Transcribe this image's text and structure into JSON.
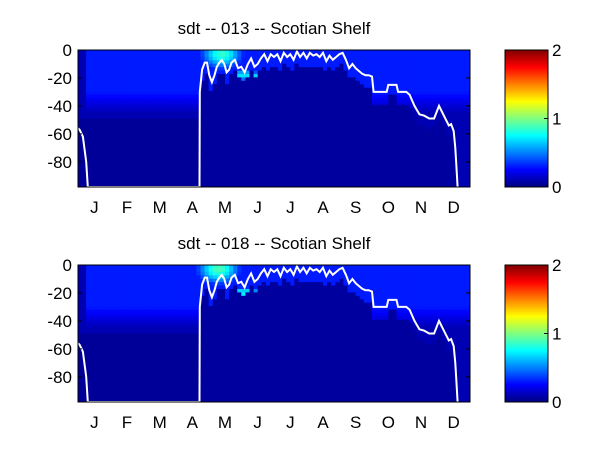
{
  "chart_data": [
    {
      "type": "heatmap",
      "title": "sdt -- 013 -- Scotian Shelf",
      "xlabel": "",
      "ylabel": "",
      "x_categories": [
        "J",
        "F",
        "M",
        "A",
        "M",
        "J",
        "J",
        "A",
        "S",
        "O",
        "N",
        "D"
      ],
      "xlim": [
        0,
        12
      ],
      "ylim": [
        -98,
        0
      ],
      "y_ticks": [
        0,
        -20,
        -40,
        -60,
        -80
      ],
      "y_tick_labels": [
        "0",
        "-20",
        "-40",
        "-60",
        "-80"
      ],
      "colorbar": {
        "colormap": "jet",
        "clim": [
          0,
          2
        ],
        "ticks": [
          0,
          1,
          2
        ],
        "tick_labels": [
          "0",
          "1",
          "2"
        ]
      },
      "field_description": {
        "background_value": 0.1,
        "surface_band": {
          "value": 0.3,
          "depth": [
            0,
            -45
          ],
          "active_months": [
            0.3,
            12
          ]
        },
        "hotspot": {
          "value": 0.85,
          "month": 4.4,
          "depth": -3
        },
        "subsurface_streak": {
          "value": 0.7,
          "from": [
            5.3,
            -18
          ],
          "to": [
            7.0,
            -30
          ]
        }
      },
      "mixed_layer_depth": {
        "color": "#ffffff",
        "months": [
          0.0,
          0.05,
          0.15,
          0.25,
          0.3,
          3.72,
          3.73,
          3.8,
          3.88,
          3.95,
          4.02,
          4.1,
          4.18,
          4.25,
          4.33,
          4.4,
          4.48,
          4.55,
          4.63,
          4.7,
          4.8,
          4.9,
          5.0,
          5.1,
          5.2,
          5.3,
          5.4,
          5.5,
          5.6,
          5.7,
          5.8,
          5.9,
          6.0,
          6.1,
          6.2,
          6.3,
          6.4,
          6.5,
          6.6,
          6.7,
          6.8,
          6.9,
          7.0,
          7.1,
          7.2,
          7.3,
          7.4,
          7.5,
          7.6,
          7.7,
          7.8,
          7.9,
          8.0,
          8.1,
          8.2,
          8.3,
          8.4,
          8.5,
          8.6,
          8.7,
          8.8,
          8.9,
          9.0,
          9.05,
          9.45,
          9.5,
          9.75,
          9.8,
          10.05,
          10.15,
          10.3,
          10.45,
          10.6,
          10.75,
          10.9,
          11.05,
          11.2,
          11.35,
          11.42,
          11.5,
          11.55,
          11.58,
          11.62
        ],
        "depth": [
          -56,
          -57,
          -62,
          -80,
          -98,
          -98,
          -30,
          -14,
          -9,
          -9,
          -18,
          -23,
          -18,
          -12,
          -9,
          -7,
          -10,
          -16,
          -14,
          -9,
          -7,
          -13,
          -12,
          -16,
          -10,
          -6,
          -12,
          -10,
          -6,
          -3,
          -8,
          -3,
          -5,
          -3,
          -8,
          -2,
          -5,
          -3,
          -7,
          -1,
          -5,
          -2,
          -6,
          -2,
          -4,
          -3,
          -5,
          -2,
          -8,
          -4,
          -7,
          -5,
          -3,
          -2,
          -7,
          -13,
          -10,
          -13,
          -15,
          -17,
          -18,
          -18,
          -19,
          -30,
          -30,
          -25,
          -25,
          -30,
          -30,
          -32,
          -40,
          -46,
          -47,
          -49,
          -49,
          -40,
          -47,
          -54,
          -53,
          -58,
          -70,
          -82,
          -98
        ]
      }
    },
    {
      "type": "heatmap",
      "title": "sdt -- 018 -- Scotian Shelf",
      "xlabel": "",
      "ylabel": "",
      "x_categories": [
        "J",
        "F",
        "M",
        "A",
        "M",
        "J",
        "J",
        "A",
        "S",
        "O",
        "N",
        "D"
      ],
      "xlim": [
        0,
        12
      ],
      "ylim": [
        -98,
        0
      ],
      "y_ticks": [
        0,
        -20,
        -40,
        -60,
        -80
      ],
      "y_tick_labels": [
        "0",
        "-20",
        "-40",
        "-60",
        "-80"
      ],
      "colorbar": {
        "colormap": "jet",
        "clim": [
          0,
          2
        ],
        "ticks": [
          0,
          1,
          2
        ],
        "tick_labels": [
          "0",
          "1",
          "2"
        ]
      },
      "field_description": {
        "background_value": 0.1,
        "surface_band": {
          "value": 0.3,
          "depth": [
            0,
            -45
          ],
          "active_months": [
            0.3,
            12
          ]
        },
        "hotspot": {
          "value": 0.9,
          "month": 4.3,
          "depth": -3
        },
        "subsurface_streak": {
          "value": 0.75,
          "from": [
            5.3,
            -20
          ],
          "to": [
            7.0,
            -32
          ]
        }
      },
      "mixed_layer_depth": {
        "color": "#ffffff",
        "months": [
          0.0,
          0.05,
          0.15,
          0.25,
          0.3,
          3.72,
          3.73,
          3.8,
          3.88,
          3.95,
          4.02,
          4.1,
          4.18,
          4.25,
          4.33,
          4.4,
          4.48,
          4.55,
          4.63,
          4.7,
          4.8,
          4.9,
          5.0,
          5.1,
          5.2,
          5.3,
          5.4,
          5.5,
          5.6,
          5.7,
          5.8,
          5.9,
          6.0,
          6.1,
          6.2,
          6.3,
          6.4,
          6.5,
          6.6,
          6.7,
          6.8,
          6.9,
          7.0,
          7.1,
          7.2,
          7.3,
          7.4,
          7.5,
          7.6,
          7.7,
          7.8,
          7.9,
          8.0,
          8.1,
          8.2,
          8.3,
          8.4,
          8.5,
          8.6,
          8.7,
          8.8,
          8.9,
          9.0,
          9.05,
          9.45,
          9.5,
          9.75,
          9.8,
          10.05,
          10.15,
          10.3,
          10.45,
          10.6,
          10.75,
          10.9,
          11.05,
          11.2,
          11.35,
          11.42,
          11.5,
          11.55,
          11.58,
          11.62
        ],
        "depth": [
          -56,
          -57,
          -62,
          -80,
          -98,
          -98,
          -30,
          -14,
          -9,
          -9,
          -18,
          -23,
          -18,
          -12,
          -9,
          -7,
          -10,
          -16,
          -14,
          -9,
          -7,
          -13,
          -12,
          -16,
          -10,
          -6,
          -12,
          -10,
          -6,
          -3,
          -8,
          -3,
          -5,
          -3,
          -8,
          -2,
          -5,
          -3,
          -7,
          -1,
          -5,
          -2,
          -6,
          -2,
          -4,
          -3,
          -5,
          -2,
          -8,
          -4,
          -7,
          -5,
          -3,
          -2,
          -7,
          -13,
          -10,
          -13,
          -15,
          -17,
          -18,
          -18,
          -19,
          -30,
          -30,
          -25,
          -25,
          -30,
          -30,
          -32,
          -40,
          -46,
          -47,
          -49,
          -49,
          -40,
          -47,
          -54,
          -53,
          -58,
          -70,
          -82,
          -98
        ]
      }
    }
  ]
}
